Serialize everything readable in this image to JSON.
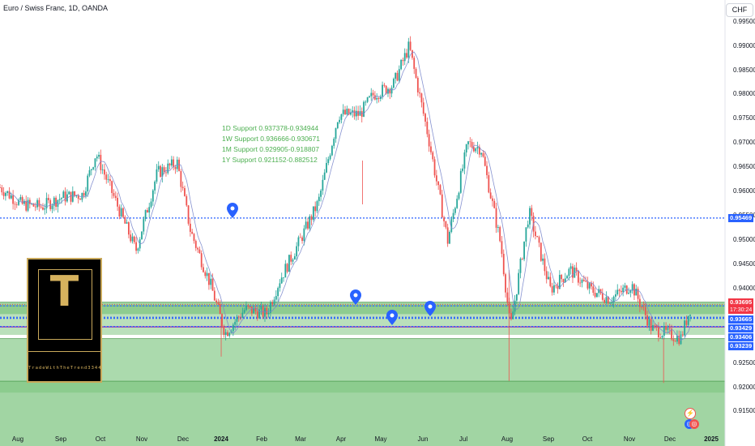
{
  "title": "Euro / Swiss Franc, 1D, OANDA",
  "currency": "CHF",
  "y_ticks": [
    "0.99500",
    "0.99000",
    "0.98500",
    "0.98000",
    "0.97500",
    "0.97000",
    "0.96500",
    "0.96000",
    "0.95500",
    "0.95000",
    "0.94500",
    "0.94000",
    "0.92500",
    "0.92000",
    "0.91500"
  ],
  "x_ticks": [
    {
      "label": "Aug",
      "bold": false
    },
    {
      "label": "Sep",
      "bold": false
    },
    {
      "label": "Oct",
      "bold": false
    },
    {
      "label": "Nov",
      "bold": false
    },
    {
      "label": "Dec",
      "bold": false
    },
    {
      "label": "2024",
      "bold": true
    },
    {
      "label": "Feb",
      "bold": false
    },
    {
      "label": "Mar",
      "bold": false
    },
    {
      "label": "Apr",
      "bold": false
    },
    {
      "label": "May",
      "bold": false
    },
    {
      "label": "Jun",
      "bold": false
    },
    {
      "label": "Jul",
      "bold": false
    },
    {
      "label": "Aug",
      "bold": false
    },
    {
      "label": "Sep",
      "bold": false
    },
    {
      "label": "Oct",
      "bold": false
    },
    {
      "label": "Nov",
      "bold": false
    },
    {
      "label": "Dec",
      "bold": false
    },
    {
      "label": "2025",
      "bold": true
    }
  ],
  "price_labels": {
    "level_top": "0.95469",
    "current": "0.93695",
    "countdown": "17:30:24",
    "level_a": "0.93665",
    "level_b": "0.93429",
    "level_c": "0.93406",
    "level_d": "0.93239"
  },
  "annotations": [
    "1D Support 0.937378-0.934944",
    "1W Support 0.936666-0.930671",
    "1M Support 0.929905-0.918807",
    "1Y Support 0.921152-0.882512"
  ],
  "logo": {
    "letter": "T",
    "tagline": "TradeWithTheTrend3344"
  },
  "colors": {
    "up": "#26a69a",
    "down": "#ef5350",
    "level_line": "#2962ff",
    "support": "#4caf50",
    "current": "#f23645",
    "logo_gold": "#c9a95b"
  },
  "chart_data": {
    "type": "candlestick",
    "symbol": "EURCHF",
    "timeframe": "1D",
    "x_range": [
      "2023-07-20",
      "2025-01-05"
    ],
    "ylim": [
      0.913,
      0.9965
    ],
    "close_path": [
      [
        "2023-07-20",
        0.961
      ],
      [
        "2023-08-05",
        0.9575
      ],
      [
        "2023-08-20",
        0.957
      ],
      [
        "2023-09-05",
        0.959
      ],
      [
        "2023-09-20",
        0.9595
      ],
      [
        "2023-09-30",
        0.968
      ],
      [
        "2023-10-15",
        0.958
      ],
      [
        "2023-10-30",
        0.948
      ],
      [
        "2023-11-15",
        0.964
      ],
      [
        "2023-11-30",
        0.966
      ],
      [
        "2023-12-10",
        0.952
      ],
      [
        "2023-12-25",
        0.941
      ],
      [
        "2024-01-05",
        0.931
      ],
      [
        "2024-01-20",
        0.936
      ],
      [
        "2024-02-05",
        0.935
      ],
      [
        "2024-02-15",
        0.942
      ],
      [
        "2024-03-01",
        0.95
      ],
      [
        "2024-03-15",
        0.958
      ],
      [
        "2024-03-30",
        0.976
      ],
      [
        "2024-04-15",
        0.976
      ],
      [
        "2024-04-25",
        0.98
      ],
      [
        "2024-05-10",
        0.982
      ],
      [
        "2024-05-22",
        0.99
      ],
      [
        "2024-06-05",
        0.972
      ],
      [
        "2024-06-20",
        0.95
      ],
      [
        "2024-07-05",
        0.97
      ],
      [
        "2024-07-15",
        0.969
      ],
      [
        "2024-07-30",
        0.949
      ],
      [
        "2024-08-06",
        0.932
      ],
      [
        "2024-08-20",
        0.956
      ],
      [
        "2024-09-05",
        0.94
      ],
      [
        "2024-09-20",
        0.944
      ],
      [
        "2024-10-05",
        0.94
      ],
      [
        "2024-10-20",
        0.938
      ],
      [
        "2024-11-05",
        0.941
      ],
      [
        "2024-11-20",
        0.932
      ],
      [
        "2024-12-01",
        0.931
      ],
      [
        "2024-12-12",
        0.93
      ],
      [
        "2024-12-20",
        0.937
      ]
    ],
    "horizontal_levels": [
      0.95469,
      0.93665,
      0.93429,
      0.93406,
      0.93239
    ],
    "support_zones": [
      {
        "label": "1D Support",
        "low": 0.934944,
        "high": 0.937378
      },
      {
        "label": "1W Support",
        "low": 0.930671,
        "high": 0.936666
      },
      {
        "label": "1M Support",
        "low": 0.918807,
        "high": 0.929905
      },
      {
        "label": "1Y Support",
        "low": 0.882512,
        "high": 0.921152
      }
    ],
    "current_price": 0.93695
  }
}
